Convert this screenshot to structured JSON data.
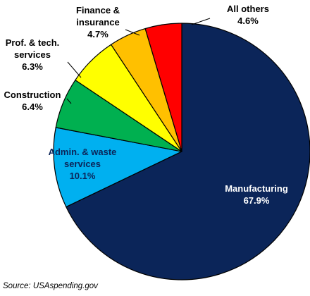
{
  "chart_data": {
    "type": "pie",
    "title": "",
    "start_angle_deg": 0,
    "direction": "clockwise",
    "slices": [
      {
        "label_lines": [
          "Manufacturing"
        ],
        "value": 67.9,
        "value_text": "67.9%",
        "color": "#0b2559",
        "label_color": "#ffffff",
        "label_position": "inside"
      },
      {
        "label_lines": [
          "Admin. & waste",
          "services"
        ],
        "value": 10.1,
        "value_text": "10.1%",
        "color": "#00b0f0",
        "label_color": "#0b2559",
        "label_position": "inside"
      },
      {
        "label_lines": [
          "Construction"
        ],
        "value": 6.4,
        "value_text": "6.4%",
        "color": "#00b050",
        "label_color": "#000000",
        "label_position": "outside"
      },
      {
        "label_lines": [
          "Prof. & tech.",
          "services"
        ],
        "value": 6.3,
        "value_text": "6.3%",
        "color": "#ffff00",
        "label_color": "#000000",
        "label_position": "outside"
      },
      {
        "label_lines": [
          "Finance &",
          "insurance"
        ],
        "value": 4.7,
        "value_text": "4.7%",
        "color": "#ffc000",
        "label_color": "#000000",
        "label_position": "outside"
      },
      {
        "label_lines": [
          "All others"
        ],
        "value": 4.6,
        "value_text": "4.6%",
        "color": "#ff0000",
        "label_color": "#000000",
        "label_position": "outside"
      }
    ],
    "source": "Source: USAspending.gov"
  }
}
